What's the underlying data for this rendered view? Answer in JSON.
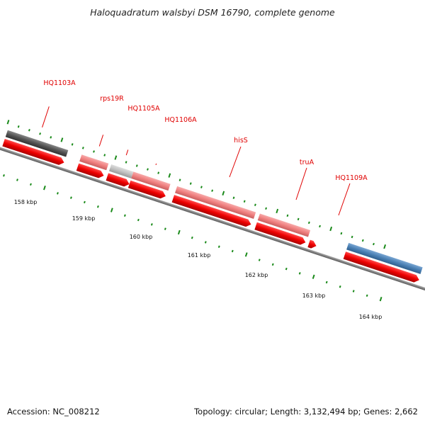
{
  "header": {
    "title": "Haloquadratum walsbyi DSM 16790, complete genome"
  },
  "genes": [
    {
      "label": "HQ1103A"
    },
    {
      "label": "rps19R"
    },
    {
      "label": "HQ1105A"
    },
    {
      "label": "HQ1106A"
    },
    {
      "label": "hisS"
    },
    {
      "label": "truA"
    },
    {
      "label": "HQ1109A"
    }
  ],
  "scale_labels": [
    "158 kbp",
    "159 kbp",
    "160 kbp",
    "161 kbp",
    "162 kbp",
    "163 kbp",
    "164 kbp"
  ],
  "footer": {
    "accession": "Accession: NC_008212",
    "summary": "Topology: circular; Length: 3,132,494 bp; Genes: 2,662"
  },
  "colors": {
    "cds_red": "#ee0000",
    "light_red": "#f08080",
    "dark_gray": "#555555",
    "light_gray": "#c0c0c0",
    "blue": "#4a80b4",
    "backbone": "#808080",
    "tick_green": "#1a8a1a",
    "label_red": "#e00000"
  }
}
